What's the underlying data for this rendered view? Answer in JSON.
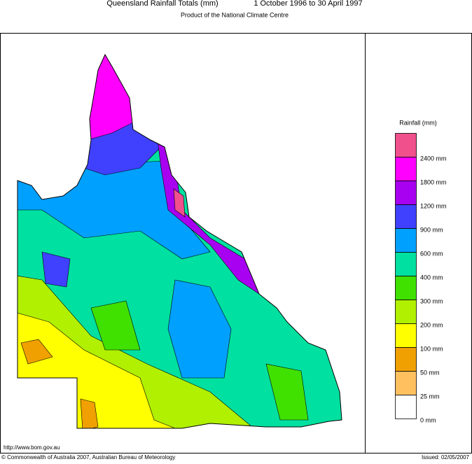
{
  "header": {
    "title": "Queensland Rainfall Totals (mm)",
    "period": "1 October 1996 to 30 April 1997",
    "subtitle": "Product of the National Climate Centre"
  },
  "legend": {
    "title": "Rainfall (mm)",
    "items": [
      {
        "label": "2400 mm",
        "color": "#f0508c"
      },
      {
        "label": "1800 mm",
        "color": "#ff00ff"
      },
      {
        "label": "1200 mm",
        "color": "#a800f0"
      },
      {
        "label": "900 mm",
        "color": "#4040ff"
      },
      {
        "label": "600 mm",
        "color": "#00a0ff"
      },
      {
        "label": "400 mm",
        "color": "#00e0a0"
      },
      {
        "label": "300 mm",
        "color": "#40e000"
      },
      {
        "label": "200 mm",
        "color": "#b0f000"
      },
      {
        "label": "100 mm",
        "color": "#ffff00"
      },
      {
        "label": "50 mm",
        "color": "#f0a000"
      },
      {
        "label": "25 mm",
        "color": "#ffc060"
      },
      {
        "label": "0 mm",
        "color": "#ffffff"
      }
    ]
  },
  "footer": {
    "url": "http://www.bom.gov.au",
    "copyright": "© Commonwealth of Australia 2007, Australian Bureau of Meteorology",
    "issued": "Issued: 02/05/2007"
  }
}
